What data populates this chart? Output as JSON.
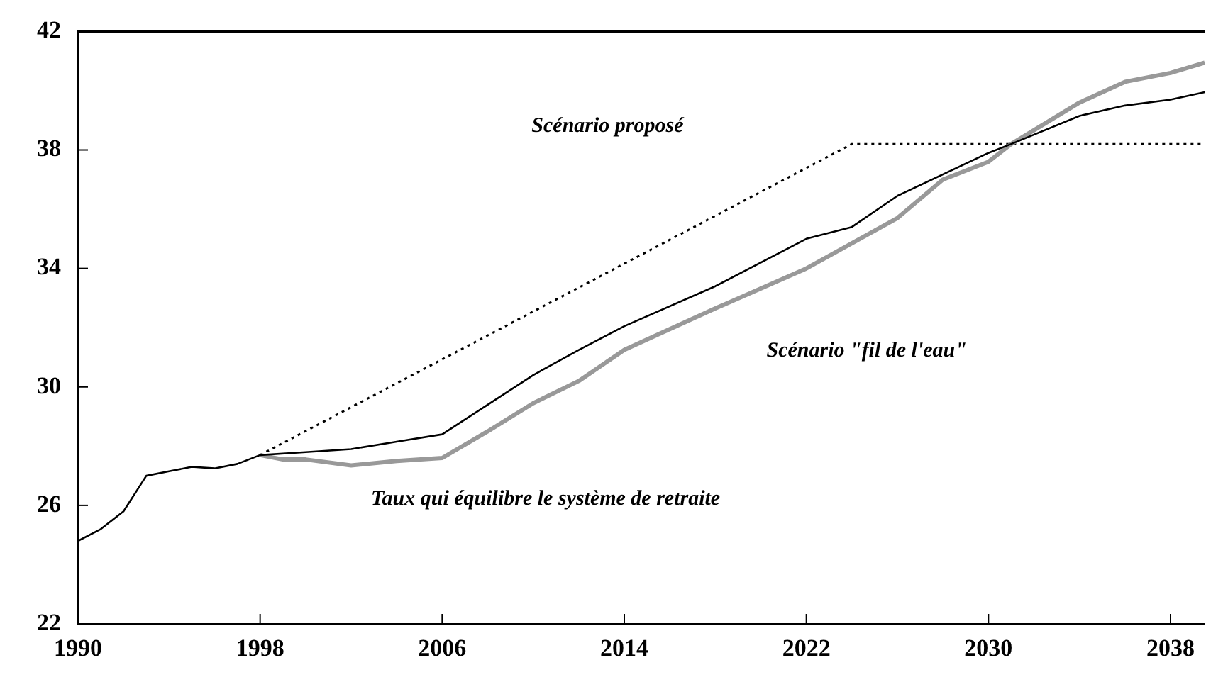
{
  "chart_data": {
    "type": "line",
    "xlim": [
      1990,
      2039.5
    ],
    "xticks": [
      1990,
      1998,
      2006,
      2014,
      2022,
      2030,
      2038
    ],
    "ylim": [
      22,
      42
    ],
    "yticks": [
      22,
      26,
      30,
      34,
      38,
      42
    ],
    "grid": false,
    "legend": false,
    "marker": "none",
    "series": [
      {
        "color": "#000000",
        "line_style": "solid",
        "x": [
          1990,
          1991,
          1992,
          1993,
          1994,
          1995,
          1996,
          1997,
          1998,
          2000,
          2002,
          2004,
          2006,
          2010,
          2012,
          2014,
          2018,
          2022,
          2024,
          2026,
          2030,
          2031,
          2034,
          2036,
          2038,
          2039.5
        ],
        "values": [
          24.8,
          25.2,
          25.8,
          27.0,
          27.15,
          27.3,
          27.25,
          27.4,
          27.7,
          27.8,
          27.9,
          28.15,
          28.4,
          30.4,
          31.25,
          32.05,
          33.4,
          35.0,
          35.4,
          36.45,
          37.9,
          38.2,
          39.15,
          39.5,
          39.7,
          39.95
        ]
      },
      {
        "color": "#999999",
        "line_style": "solid",
        "x": [
          1998,
          1999,
          2000,
          2002,
          2004,
          2006,
          2008,
          2010,
          2012,
          2014,
          2018,
          2022,
          2024,
          2026,
          2028,
          2030,
          2031,
          2034,
          2036,
          2038,
          2039.5
        ],
        "values": [
          27.7,
          27.55,
          27.55,
          27.35,
          27.5,
          27.6,
          28.5,
          29.45,
          30.2,
          31.25,
          32.65,
          34.0,
          34.85,
          35.7,
          37.0,
          37.6,
          38.2,
          39.6,
          40.3,
          40.6,
          40.95
        ]
      },
      {
        "color": "#000000",
        "line_style": "dotted",
        "x": [
          1998,
          2024,
          2039.5
        ],
        "values": [
          27.7,
          38.2,
          38.2
        ]
      }
    ],
    "annotations": [
      "Scénario proposé",
      "Scénario \"fil de l'eau\"",
      "Taux qui équilibre le système de retraite"
    ]
  }
}
